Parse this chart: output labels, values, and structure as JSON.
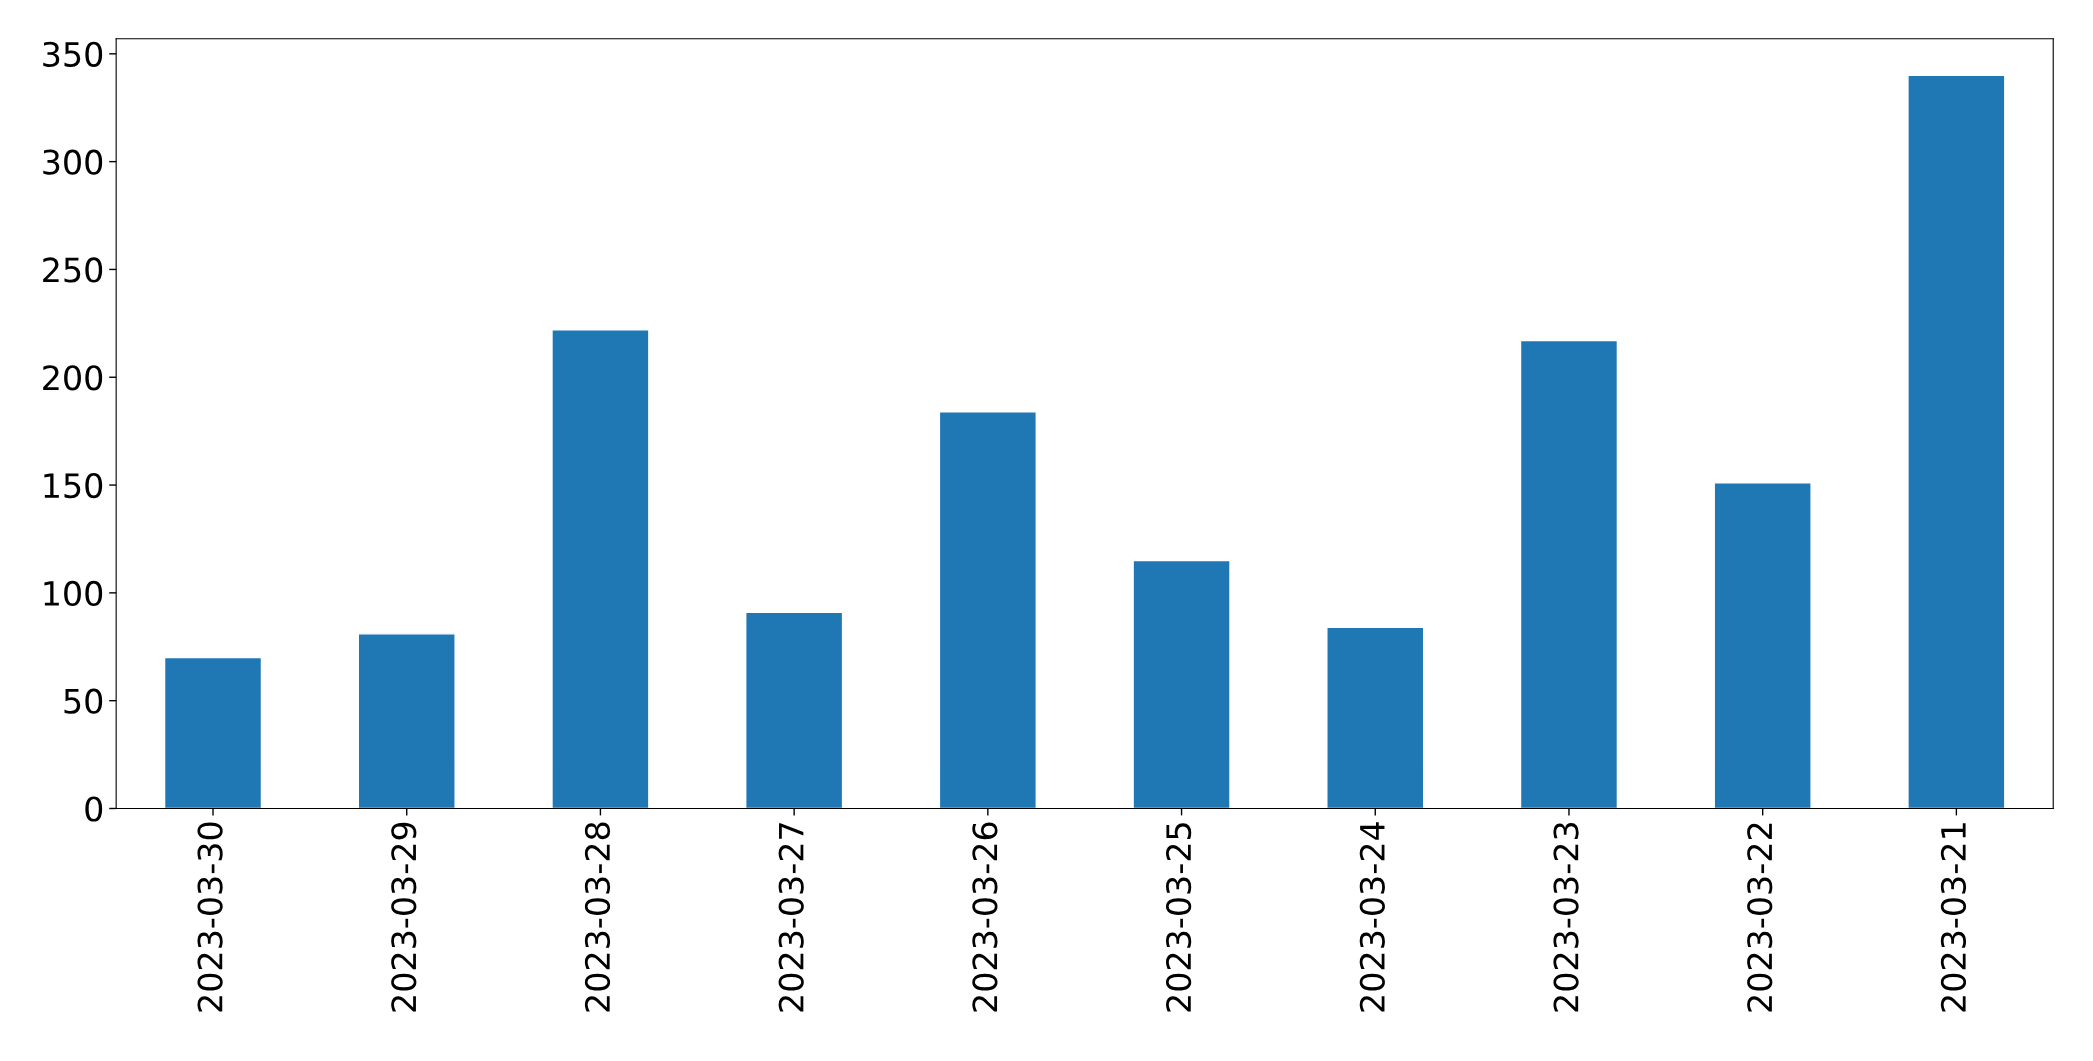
{
  "chart_data": {
    "type": "bar",
    "categories": [
      "2023-03-30",
      "2023-03-29",
      "2023-03-28",
      "2023-03-27",
      "2023-03-26",
      "2023-03-25",
      "2023-03-24",
      "2023-03-23",
      "2023-03-22",
      "2023-03-21"
    ],
    "values": [
      70,
      81,
      222,
      91,
      184,
      115,
      84,
      217,
      151,
      340
    ],
    "color": "#1f77b4",
    "ylim": [
      0,
      357
    ],
    "yticks": [
      0,
      50,
      100,
      150,
      200,
      250,
      300,
      350
    ],
    "grid": false
  }
}
